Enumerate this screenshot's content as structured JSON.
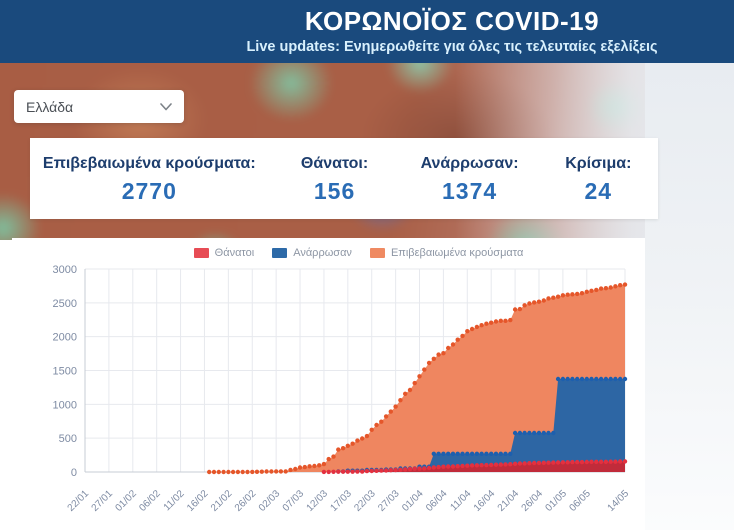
{
  "header": {
    "title": "ΚΟΡΩΝΟΪΟΣ COVID-19",
    "subtitle": "Live updates: Ενημερωθείτε για όλες τις τελευταίες εξελίξεις"
  },
  "country_select": {
    "value": "Ελλάδα"
  },
  "stats": [
    {
      "label": "Επιβεβαιωμένα κρούσματα:",
      "value": "2770"
    },
    {
      "label": "Θάνατοι:",
      "value": "156"
    },
    {
      "label": "Ανάρρωσαν:",
      "value": "1374"
    },
    {
      "label": "Κρίσιμα:",
      "value": "24"
    }
  ],
  "colors": {
    "header_bg": "#1a4a7d",
    "subtitle_text": "#d8f0fd",
    "stat_label": "#1d3d6d",
    "stat_value": "#2a6cb5",
    "legend_text": "#8d96a4",
    "axis_text": "#7e8ba3",
    "gridline": "#e7e9ee",
    "axis_line": "#c7ccd4"
  },
  "chart_data": {
    "type": "area",
    "title": "",
    "xlabel": "",
    "ylabel": "",
    "ylim": [
      0,
      3000
    ],
    "y_ticks": [
      0,
      500,
      1000,
      1500,
      2000,
      2500,
      3000
    ],
    "grid": true,
    "legend_position": "top",
    "x_tick_labels": [
      "22/01",
      "27/01",
      "01/02",
      "06/02",
      "11/02",
      "16/02",
      "21/02",
      "26/02",
      "02/03",
      "07/03",
      "12/03",
      "17/03",
      "22/03",
      "27/03",
      "01/04",
      "06/04",
      "11/04",
      "16/04",
      "21/04",
      "26/04",
      "01/05",
      "06/05",
      "14/05"
    ],
    "x_tick_day_index": [
      0,
      5,
      10,
      15,
      20,
      25,
      30,
      35,
      40,
      45,
      50,
      55,
      60,
      65,
      70,
      75,
      80,
      85,
      90,
      95,
      100,
      105,
      113
    ],
    "series": [
      {
        "name": "Θάνατοι",
        "fill": "#c12b3a",
        "marker": "#e4303f",
        "legend_color": "#e74c55",
        "marker_start": null,
        "values": [
          0,
          0,
          0,
          0,
          0,
          0,
          0,
          0,
          0,
          0,
          0,
          0,
          0,
          0,
          0,
          0,
          0,
          0,
          0,
          0,
          0,
          0,
          0,
          0,
          0,
          0,
          0,
          0,
          0,
          0,
          0,
          0,
          0,
          0,
          0,
          0,
          0,
          0,
          0,
          0,
          0,
          0,
          0,
          0,
          0,
          0,
          0,
          0,
          0,
          0,
          1,
          1,
          3,
          4,
          4,
          5,
          5,
          6,
          6,
          13,
          15,
          17,
          20,
          22,
          26,
          28,
          32,
          38,
          43,
          49,
          50,
          53,
          59,
          68,
          73,
          79,
          81,
          81,
          86,
          90,
          93,
          98,
          99,
          101,
          102,
          105,
          108,
          110,
          113,
          116,
          121,
          125,
          127,
          130,
          133,
          134,
          136,
          138,
          139,
          140,
          143,
          144,
          146,
          146,
          147,
          148,
          150,
          150,
          151,
          151,
          152,
          152,
          155,
          156
        ]
      },
      {
        "name": "Ανάρρωσαν",
        "fill": "#2d66a4",
        "marker": "#1d5fae",
        "legend_color": "#2d6aa8",
        "marker_start": null,
        "values": [
          0,
          0,
          0,
          0,
          0,
          0,
          0,
          0,
          0,
          0,
          0,
          0,
          0,
          0,
          0,
          0,
          0,
          0,
          0,
          0,
          0,
          0,
          0,
          0,
          0,
          0,
          0,
          0,
          0,
          0,
          0,
          0,
          0,
          0,
          0,
          0,
          0,
          0,
          0,
          0,
          0,
          0,
          0,
          0,
          0,
          0,
          0,
          0,
          0,
          0,
          0,
          0,
          0,
          8,
          8,
          19,
          19,
          19,
          19,
          29,
          29,
          29,
          29,
          36,
          36,
          36,
          52,
          52,
          52,
          52,
          78,
          78,
          78,
          269,
          269,
          269,
          269,
          269,
          269,
          269,
          269,
          269,
          269,
          269,
          269,
          269,
          269,
          269,
          269,
          269,
          577,
          577,
          577,
          577,
          577,
          577,
          577,
          577,
          577,
          1374,
          1374,
          1374,
          1374,
          1374,
          1374,
          1374,
          1374,
          1374,
          1374,
          1374,
          1374,
          1374,
          1374,
          1374
        ]
      },
      {
        "name": "Επιβεβαιωμένα κρούσματα",
        "fill": "#ef8660",
        "marker": "#e5562a",
        "legend_color": "#ef8a62",
        "marker_start": 26,
        "values": [
          0,
          0,
          0,
          0,
          0,
          0,
          0,
          0,
          0,
          0,
          0,
          0,
          0,
          0,
          0,
          0,
          0,
          0,
          0,
          0,
          0,
          0,
          0,
          0,
          0,
          0,
          0,
          0,
          0,
          0,
          0,
          0,
          0,
          0,
          0,
          1,
          3,
          4,
          7,
          7,
          9,
          9,
          9,
          31,
          45,
          66,
          73,
          84,
          89,
          99,
          117,
          190,
          228,
          331,
          352,
          387,
          418,
          464,
          495,
          530,
          624,
          695,
          743,
          821,
          892,
          966,
          1061,
          1156,
          1212,
          1314,
          1415,
          1514,
          1613,
          1673,
          1735,
          1755,
          1832,
          1884,
          1955,
          2011,
          2081,
          2114,
          2145,
          2170,
          2192,
          2207,
          2224,
          2235,
          2235,
          2245,
          2401,
          2408,
          2463,
          2490,
          2506,
          2517,
          2534,
          2566,
          2576,
          2591,
          2612,
          2620,
          2626,
          2632,
          2642,
          2663,
          2678,
          2691,
          2710,
          2716,
          2726,
          2744,
          2760,
          2770
        ]
      }
    ]
  }
}
